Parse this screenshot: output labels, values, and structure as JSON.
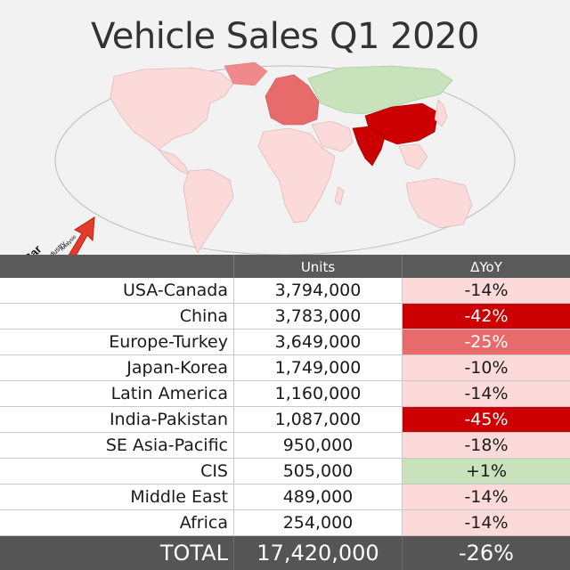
{
  "title": "Vehicle Sales Q1 2020",
  "logo": {
    "line1": "Car",
    "line2": "Industry",
    "line3": "Analysis"
  },
  "colors": {
    "strong_decline": "#cc0000",
    "medium_decline": "#e86b6b",
    "mild_decline": "#fddada",
    "growth": "#c8e2bb",
    "header_bg": "#5a5a5a",
    "total_bg": "#555555"
  },
  "table": {
    "headers": [
      "",
      "Units",
      "ΔYoY"
    ],
    "total": {
      "label": "TOTAL",
      "units": "17,420,000",
      "yoy": "-26%"
    }
  },
  "chart_data": {
    "type": "table",
    "title": "Vehicle Sales Q1 2020",
    "columns": [
      "Units",
      "ΔYoY"
    ],
    "rows": [
      {
        "region": "USA-Canada",
        "units": 3794000,
        "units_label": "3,794,000",
        "yoy": -14,
        "yoy_label": "-14%",
        "color": "#fddada"
      },
      {
        "region": "China",
        "units": 3783000,
        "units_label": "3,783,000",
        "yoy": -42,
        "yoy_label": "-42%",
        "color": "#cc0000"
      },
      {
        "region": "Europe-Turkey",
        "units": 3649000,
        "units_label": "3,649,000",
        "yoy": -25,
        "yoy_label": "-25%",
        "color": "#e86b6b"
      },
      {
        "region": "Japan-Korea",
        "units": 1749000,
        "units_label": "1,749,000",
        "yoy": -10,
        "yoy_label": "-10%",
        "color": "#fddada"
      },
      {
        "region": "Latin America",
        "units": 1160000,
        "units_label": "1,160,000",
        "yoy": -14,
        "yoy_label": "-14%",
        "color": "#fddada"
      },
      {
        "region": "India-Pakistan",
        "units": 1087000,
        "units_label": "1,087,000",
        "yoy": -45,
        "yoy_label": "-45%",
        "color": "#cc0000"
      },
      {
        "region": "SE Asia-Pacific",
        "units": 950000,
        "units_label": "950,000",
        "yoy": -18,
        "yoy_label": "-18%",
        "color": "#fddada"
      },
      {
        "region": "CIS",
        "units": 505000,
        "units_label": "505,000",
        "yoy": 1,
        "yoy_label": "+1%",
        "color": "#c8e2bb"
      },
      {
        "region": "Middle East",
        "units": 489000,
        "units_label": "489,000",
        "yoy": -14,
        "yoy_label": "-14%",
        "color": "#fddada"
      },
      {
        "region": "Africa",
        "units": 254000,
        "units_label": "254,000",
        "yoy": -14,
        "yoy_label": "-14%",
        "color": "#fddada"
      }
    ],
    "total": {
      "units": 17420000,
      "yoy": -26
    }
  }
}
